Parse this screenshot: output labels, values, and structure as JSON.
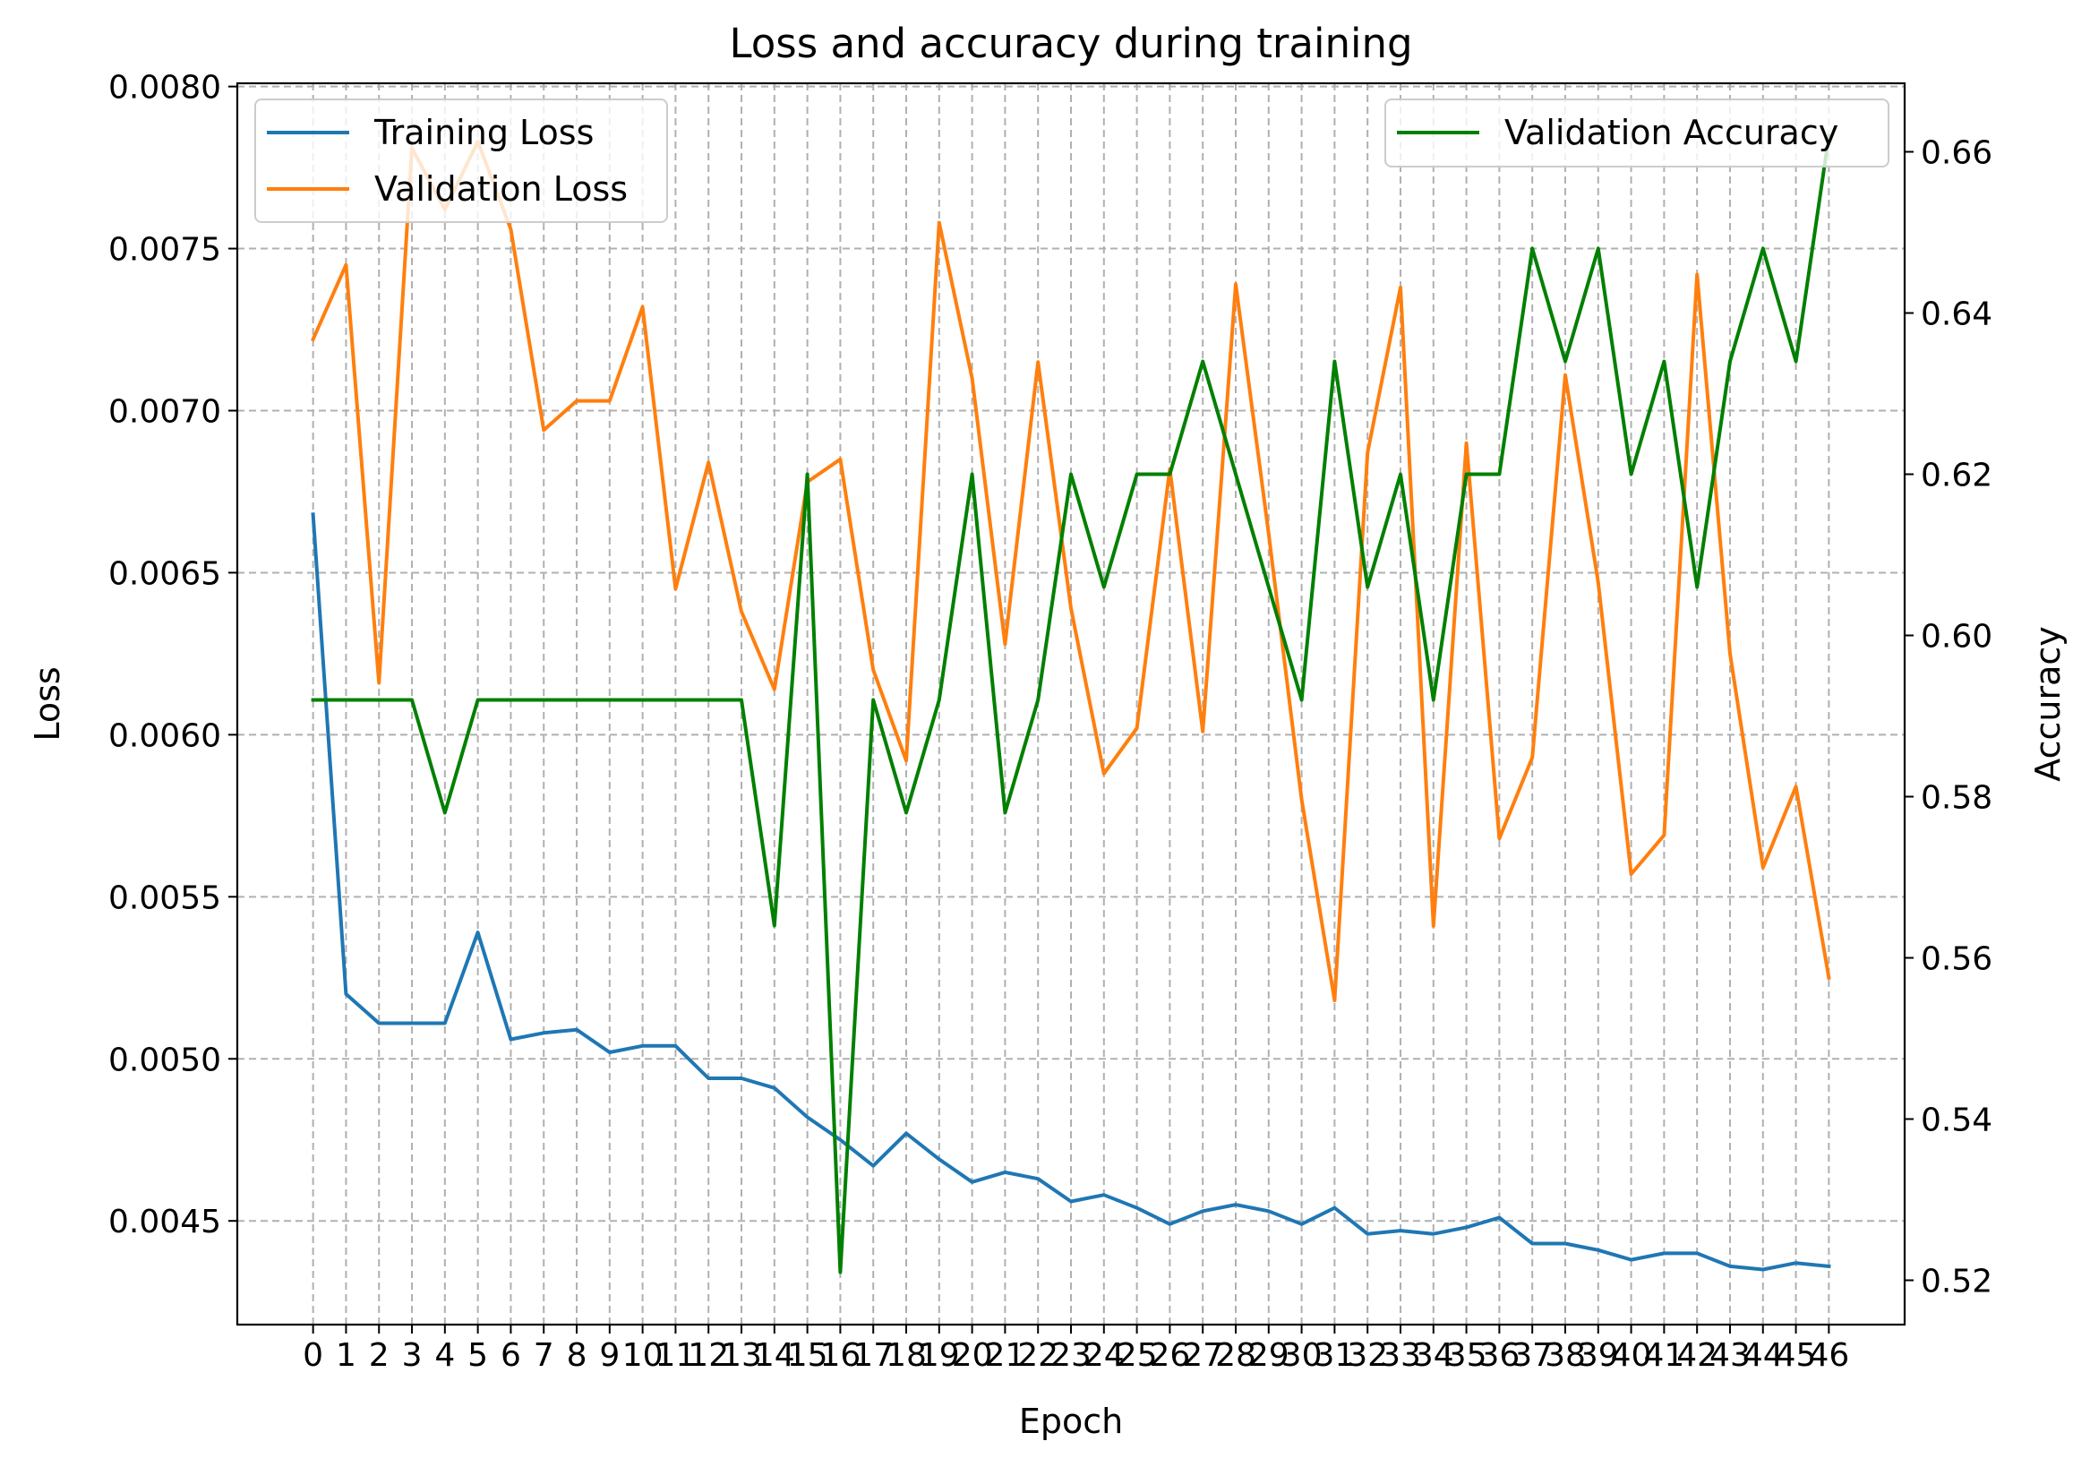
{
  "chart_data": {
    "type": "line",
    "title": "Loss and accuracy during training",
    "xlabel": "Epoch",
    "ylabel": "Loss",
    "y2label": "Accuracy",
    "grid": true,
    "ylim": [
      0.00418,
      0.00801
    ],
    "y2lim": [
      0.5145,
      0.6685
    ],
    "x": [
      0,
      1,
      2,
      3,
      4,
      5,
      6,
      7,
      8,
      9,
      10,
      11,
      12,
      13,
      14,
      15,
      16,
      17,
      18,
      19,
      20,
      21,
      22,
      23,
      24,
      25,
      26,
      27,
      28,
      29,
      30,
      31,
      32,
      33,
      34,
      35,
      36,
      37,
      38,
      39,
      40,
      41,
      42,
      43,
      44,
      45,
      46
    ],
    "x_ticks": [
      "0",
      "1",
      "2",
      "3",
      "4",
      "5",
      "6",
      "7",
      "8",
      "9",
      "10",
      "11",
      "12",
      "13",
      "14",
      "15",
      "16",
      "17",
      "18",
      "19",
      "20",
      "21",
      "22",
      "23",
      "24",
      "25",
      "26",
      "27",
      "28",
      "29",
      "30",
      "31",
      "32",
      "33",
      "34",
      "35",
      "36",
      "37",
      "38",
      "39",
      "40",
      "41",
      "42",
      "43",
      "44",
      "45",
      "46"
    ],
    "y_ticks": [
      "0.0045",
      "0.0050",
      "0.0055",
      "0.0060",
      "0.0065",
      "0.0070",
      "0.0075",
      "0.0080"
    ],
    "y2_ticks": [
      "0.52",
      "0.54",
      "0.56",
      "0.58",
      "0.60",
      "0.62",
      "0.64",
      "0.66"
    ],
    "series": [
      {
        "name": "Training Loss",
        "axis": "left",
        "color": "#1f77b4",
        "values": [
          0.00668,
          0.0052,
          0.00511,
          0.00511,
          0.00511,
          0.00539,
          0.00506,
          0.00508,
          0.00509,
          0.00502,
          0.00504,
          0.00504,
          0.00494,
          0.00494,
          0.00491,
          0.00482,
          0.00475,
          0.00467,
          0.00477,
          0.00469,
          0.00462,
          0.00465,
          0.00463,
          0.00456,
          0.00458,
          0.00454,
          0.00449,
          0.00453,
          0.00455,
          0.00453,
          0.00449,
          0.00454,
          0.00446,
          0.00447,
          0.00446,
          0.00448,
          0.00451,
          0.00443,
          0.00443,
          0.00441,
          0.00438,
          0.0044,
          0.0044,
          0.00436,
          0.00435,
          0.00437,
          0.00436
        ]
      },
      {
        "name": "Validation Loss",
        "axis": "left",
        "color": "#ff7f0e",
        "values": [
          0.00722,
          0.00745,
          0.00616,
          0.00781,
          0.00762,
          0.00783,
          0.00756,
          0.00694,
          0.00703,
          0.00703,
          0.00732,
          0.00645,
          0.00684,
          0.00638,
          0.00614,
          0.00678,
          0.00685,
          0.0062,
          0.00592,
          0.00758,
          0.0071,
          0.00628,
          0.00715,
          0.00639,
          0.00588,
          0.00602,
          0.00682,
          0.00601,
          0.00739,
          0.00662,
          0.0058,
          0.00518,
          0.00687,
          0.00738,
          0.00541,
          0.0069,
          0.00568,
          0.00593,
          0.00711,
          0.00647,
          0.00557,
          0.00569,
          0.00742,
          0.00625,
          0.00559,
          0.00584,
          0.00525
        ]
      },
      {
        "name": "Validation Accuracy",
        "axis": "right",
        "color": "#008000",
        "values": [
          0.592,
          0.592,
          0.592,
          0.592,
          0.578,
          0.592,
          0.592,
          0.592,
          0.592,
          0.592,
          0.592,
          0.592,
          0.592,
          0.592,
          0.564,
          0.62,
          0.521,
          0.592,
          0.578,
          0.592,
          0.62,
          0.578,
          0.592,
          0.62,
          0.606,
          0.62,
          0.62,
          0.634,
          0.62,
          0.606,
          0.592,
          0.634,
          0.606,
          0.62,
          0.592,
          0.62,
          0.62,
          0.648,
          0.634,
          0.648,
          0.62,
          0.634,
          0.606,
          0.634,
          0.648,
          0.634,
          0.662
        ]
      }
    ],
    "legends": [
      {
        "placement": "top-left",
        "entries": [
          "Training Loss",
          "Validation Loss"
        ]
      },
      {
        "placement": "top-right",
        "entries": [
          "Validation Accuracy"
        ]
      }
    ]
  }
}
